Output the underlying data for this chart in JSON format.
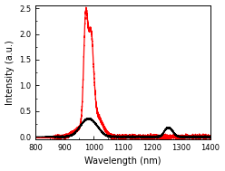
{
  "xlabel": "Wavelength (nm)",
  "ylabel": "Intensity (a.u.)",
  "xlim": [
    800,
    1400
  ],
  "ylim": [
    -0.05,
    2.55
  ],
  "xticks": [
    800,
    900,
    1000,
    1100,
    1200,
    1300,
    1400
  ],
  "yticks": [
    0.0,
    0.5,
    1.0,
    1.5,
    2.0,
    2.5
  ],
  "red_color": "#ff0000",
  "black_color": "#000000",
  "bg_color": "#ffffff",
  "linewidth": 0.9,
  "label_fontsize": 7,
  "tick_fontsize": 6
}
